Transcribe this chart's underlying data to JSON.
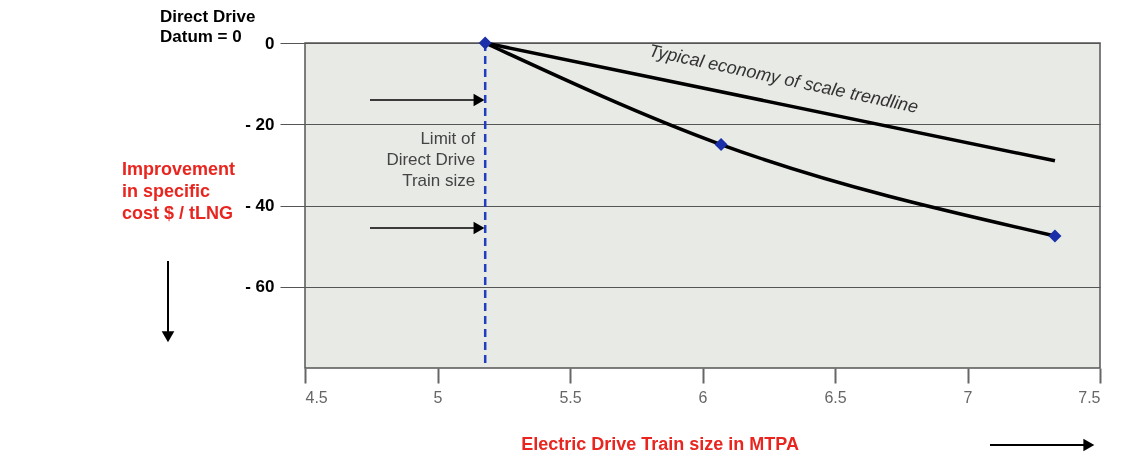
{
  "chart_data": {
    "type": "line",
    "xlabel": "Electric Drive Train size in MTPA",
    "ylabel": "Improvement\nin specific\ncost $ / tLNG",
    "annotations": [
      "Direct Drive\nDatum = 0"
    ],
    "series": [
      {
        "name": "Typical economy of scale trendline",
        "color": "#000000",
        "x": [
          5.18,
          7.33
        ],
        "values": [
          0,
          -29
        ],
        "marker": "none"
      },
      {
        "type": "line",
        "color": "#000000",
        "x": [
          5.18,
          6.07,
          7.33
        ],
        "values": [
          0,
          -25,
          -47.5
        ],
        "marker": "none"
      },
      {
        "type": "scatter",
        "color": "#1a2fa8",
        "x": [
          5.18,
          6.07,
          7.33
        ],
        "values": [
          0,
          -25,
          -47.5
        ],
        "marker": "diamond"
      }
    ],
    "xlim": [
      4.5,
      7.5
    ],
    "xticks": [
      4.5,
      5,
      5.5,
      6,
      6.5,
      7,
      7.5
    ],
    "ylim": [
      -80,
      0
    ],
    "yticks": [
      0,
      {
        "value": -20,
        "label": "- 20"
      },
      {
        "value": -40,
        "label": "- 40"
      },
      {
        "value": -60,
        "label": "- 60"
      }
    ],
    "ref_lines": [
      {
        "axis": "x",
        "value": 5.18,
        "label": "Limit of\nDirect Drive\nTrain size",
        "color": "#1f3fbf",
        "line_style": "dashed"
      }
    ],
    "grid": "y"
  }
}
